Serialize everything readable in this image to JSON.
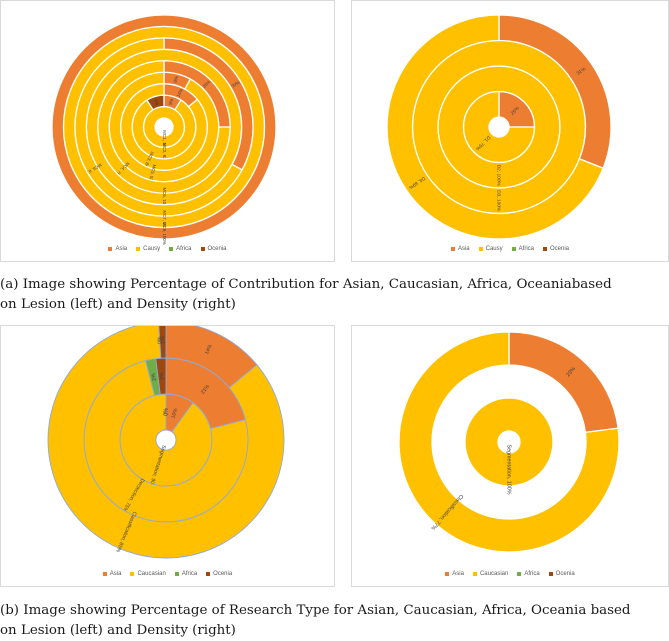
{
  "colors": {
    "asia": "#ED7D31",
    "caucasian": "#FFC000",
    "africa": "#70AD47",
    "oceania": "#9E480E",
    "ring_border": "#ffffff",
    "ring_border_b": "#8faadc"
  },
  "captions": {
    "a": {
      "line1": "(a)   Image showing Percentage of Contribution for Asian, Caucasian, Africa, Oceaniabased",
      "line2": "on Lesion (left) and Density (right)"
    },
    "b": {
      "line1": "(b)   Image showing Percentage of Research Type for Asian, Caucasian, Africa, Oceania based",
      "line2": "on Lesion (left) and Density (right)"
    }
  },
  "chart_data": [
    {
      "type": "doughnut",
      "legend": [
        "Asia",
        "Causy",
        "Africa",
        "Ocenia"
      ],
      "rings": [
        {
          "name": "MC1",
          "segments": [
            {
              "series": "Asia",
              "value": 0
            },
            {
              "series": "Causy",
              "value": 100
            },
            {
              "series": "Africa",
              "value": 0
            },
            {
              "series": "Ocenia",
              "value": 0
            }
          ],
          "labels": [
            {
              "text": "MC1, 100%",
              "series": "Causy"
            }
          ]
        },
        {
          "name": "MC2",
          "segments": [
            {
              "series": "Asia",
              "value": 9
            },
            {
              "series": "Causy",
              "value": 82
            },
            {
              "series": "Africa",
              "value": 0
            },
            {
              "series": "Ocenia",
              "value": 9
            }
          ],
          "labels": [
            {
              "text": "9%",
              "series": "Asia"
            },
            {
              "text": "MC2, 82%",
              "series": "Causy"
            },
            {
              "text": "9%",
              "series": "Ocenia"
            }
          ]
        },
        {
          "name": "MC3",
          "segments": [
            {
              "series": "Asia",
              "value": 14
            },
            {
              "series": "Causy",
              "value": 86
            },
            {
              "series": "Africa",
              "value": 0
            },
            {
              "series": "Ocenia",
              "value": 0
            }
          ],
          "labels": [
            {
              "text": "14%",
              "series": "Asia"
            },
            {
              "text": "MC3, 86%",
              "series": "Causy"
            }
          ]
        },
        {
          "name": "MC4",
          "segments": [
            {
              "series": "Asia",
              "value": 8
            },
            {
              "series": "Causy",
              "value": 92
            },
            {
              "series": "Africa",
              "value": 0
            },
            {
              "series": "Ocenia",
              "value": 0
            }
          ],
          "labels": [
            {
              "text": "8%",
              "series": "Asia"
            },
            {
              "text": "MC5, 92%",
              "series": "Causy"
            }
          ]
        },
        {
          "name": "MC5",
          "segments": [
            {
              "series": "Asia",
              "value": 25
            },
            {
              "series": "Causy",
              "value": 75
            },
            {
              "series": "Africa",
              "value": 0
            },
            {
              "series": "Ocenia",
              "value": 0
            }
          ],
          "labels": [
            {
              "text": "25%",
              "series": "Asia"
            },
            {
              "text": "MC4, 75%",
              "series": "Causy"
            }
          ]
        },
        {
          "name": "MC6",
          "segments": [
            {
              "series": "Asia",
              "value": 0
            },
            {
              "series": "Causy",
              "value": 100
            },
            {
              "series": "Africa",
              "value": 0
            },
            {
              "series": "Ocenia",
              "value": 0
            }
          ],
          "labels": [
            {
              "text": "MC6, 100%",
              "series": "Causy"
            }
          ]
        },
        {
          "name": "MC7",
          "segments": [
            {
              "series": "Asia",
              "value": 33
            },
            {
              "series": "Causy",
              "value": 67
            },
            {
              "series": "Africa",
              "value": 0
            },
            {
              "series": "Ocenia",
              "value": 0
            }
          ],
          "labels": [
            {
              "text": "33%",
              "series": "Asia"
            },
            {
              "text": "MC6, 67%",
              "series": "Causy"
            }
          ]
        },
        {
          "name": "MC8",
          "segments": [
            {
              "series": "Asia",
              "value": 0
            },
            {
              "series": "Causy",
              "value": 100
            },
            {
              "series": "Africa",
              "value": 0
            },
            {
              "series": "Ocenia",
              "value": 0
            }
          ],
          "labels": [
            {
              "text": "MC7, 100%",
              "series": "Causy"
            }
          ]
        },
        {
          "name": "MC9",
          "segments": [
            {
              "series": "Asia",
              "value": 100
            },
            {
              "series": "Causy",
              "value": 0
            },
            {
              "series": "Africa",
              "value": 0
            },
            {
              "series": "Ocenia",
              "value": 0
            }
          ],
          "labels": [
            {
              "text": "MC8, 100%",
              "series": "Asia"
            }
          ]
        }
      ]
    },
    {
      "type": "doughnut",
      "legend": [
        "Asia",
        "Causy",
        "Africa",
        "Ocenia"
      ],
      "rings": [
        {
          "name": "D1",
          "segments": [
            {
              "series": "Asia",
              "value": 25
            },
            {
              "series": "Causy",
              "value": 75
            },
            {
              "series": "Africa",
              "value": 0
            },
            {
              "series": "Ocenia",
              "value": 0
            }
          ],
          "labels": [
            {
              "text": "25%",
              "series": "Asia"
            },
            {
              "text": "D1, 75%",
              "series": "Causy"
            }
          ]
        },
        {
          "name": "D2",
          "segments": [
            {
              "series": "Asia",
              "value": 0
            },
            {
              "series": "Causy",
              "value": 100
            },
            {
              "series": "Africa",
              "value": 0
            },
            {
              "series": "Ocenia",
              "value": 0
            }
          ],
          "labels": [
            {
              "text": "D2, 100%",
              "series": "Causy"
            }
          ]
        },
        {
          "name": "D3",
          "segments": [
            {
              "series": "Asia",
              "value": 0
            },
            {
              "series": "Causy",
              "value": 100
            },
            {
              "series": "Africa",
              "value": 0
            },
            {
              "series": "Ocenia",
              "value": 0
            }
          ],
          "labels": [
            {
              "text": "D3, 100%",
              "series": "Causy"
            }
          ]
        },
        {
          "name": "D4",
          "segments": [
            {
              "series": "Asia",
              "value": 31
            },
            {
              "series": "Causy",
              "value": 69
            },
            {
              "series": "Africa",
              "value": 0
            },
            {
              "series": "Ocenia",
              "value": 0
            }
          ],
          "labels": [
            {
              "text": "31%",
              "series": "Asia"
            },
            {
              "text": "D4, 69%",
              "series": "Causy"
            }
          ]
        }
      ]
    },
    {
      "type": "doughnut",
      "legend": [
        "Asia",
        "Caucasian",
        "Africa",
        "Ocenia"
      ],
      "rings": [
        {
          "name": "Segmentation",
          "segments": [
            {
              "series": "Asia",
              "value": 10
            },
            {
              "series": "Caucasian",
              "value": 90
            },
            {
              "series": "Africa",
              "value": 0
            },
            {
              "series": "Ocenia",
              "value": 0
            }
          ],
          "labels": [
            {
              "text": "10%",
              "series": "Asia"
            },
            {
              "text": "Segmentation, 90%",
              "series": "Caucasian"
            },
            {
              "text": "0%",
              "series": "Africa"
            },
            {
              "text": "0%",
              "series": "Ocenia"
            }
          ]
        },
        {
          "name": "Dectection",
          "segments": [
            {
              "series": "Asia",
              "value": 21
            },
            {
              "series": "Caucasian",
              "value": 75
            },
            {
              "series": "Africa",
              "value": 2
            },
            {
              "series": "Ocenia",
              "value": 2
            }
          ],
          "labels": [
            {
              "text": "21%",
              "series": "Asia"
            },
            {
              "text": "Dectection, 75%",
              "series": "Caucasian"
            },
            {
              "text": "2%",
              "series": "Africa"
            },
            {
              "text": "2%",
              "series": "Ocenia"
            }
          ]
        },
        {
          "name": "Classification",
          "segments": [
            {
              "series": "Asia",
              "value": 14
            },
            {
              "series": "Caucasian",
              "value": 85
            },
            {
              "series": "Africa",
              "value": 0
            },
            {
              "series": "Ocenia",
              "value": 1
            }
          ],
          "labels": [
            {
              "text": "14%",
              "series": "Asia"
            },
            {
              "text": "Classification, 85%",
              "series": "Caucasian"
            },
            {
              "text": "0%",
              "series": "Africa"
            },
            {
              "text": "1%",
              "series": "Ocenia"
            }
          ]
        }
      ]
    },
    {
      "type": "doughnut",
      "legend": [
        "Asia",
        "Caucasian",
        "Africa",
        "Ocenia"
      ],
      "rings": [
        {
          "name": "Segmentation",
          "segments": [
            {
              "series": "Asia",
              "value": 0
            },
            {
              "series": "Caucasian",
              "value": 100
            },
            {
              "series": "Africa",
              "value": 0
            },
            {
              "series": "Ocenia",
              "value": 0
            }
          ],
          "labels": [
            {
              "text": "Segmentation, 100%",
              "series": "Caucasian"
            }
          ]
        },
        {
          "name": "gap",
          "segments": [],
          "labels": []
        },
        {
          "name": "Classification",
          "segments": [
            {
              "series": "Asia",
              "value": 23
            },
            {
              "series": "Caucasian",
              "value": 77
            },
            {
              "series": "Africa",
              "value": 0
            },
            {
              "series": "Ocenia",
              "value": 0
            }
          ],
          "labels": [
            {
              "text": "23%",
              "series": "Asia"
            },
            {
              "text": "Classification, 77%",
              "series": "Caucasian"
            }
          ]
        }
      ]
    }
  ]
}
